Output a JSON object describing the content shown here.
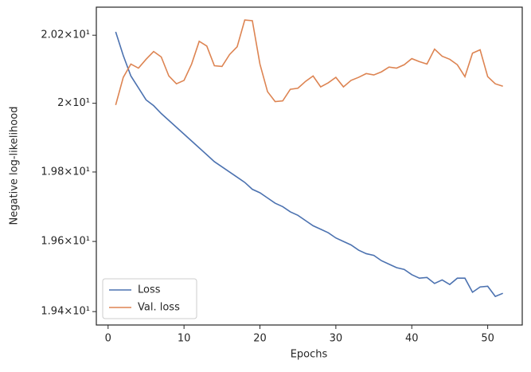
{
  "chart_data": {
    "type": "line",
    "xlabel": "Epochs",
    "ylabel": "Negative log-likelihood",
    "x": [
      1,
      2,
      3,
      4,
      5,
      6,
      7,
      8,
      9,
      10,
      11,
      12,
      13,
      14,
      15,
      16,
      17,
      18,
      19,
      20,
      21,
      22,
      23,
      24,
      25,
      26,
      27,
      28,
      29,
      30,
      31,
      32,
      33,
      34,
      35,
      36,
      37,
      38,
      39,
      40,
      41,
      42,
      43,
      44,
      45,
      46,
      47,
      48,
      49,
      50,
      51,
      52
    ],
    "series": [
      {
        "name": "Loss",
        "color": "#4c72b0",
        "values": [
          20.21,
          20.14,
          20.08,
          20.045,
          20.01,
          19.993,
          19.97,
          19.95,
          19.93,
          19.91,
          19.89,
          19.87,
          19.85,
          19.83,
          19.815,
          19.8,
          19.785,
          19.77,
          19.75,
          19.74,
          19.725,
          19.71,
          19.7,
          19.685,
          19.675,
          19.66,
          19.645,
          19.635,
          19.625,
          19.61,
          19.6,
          19.59,
          19.575,
          19.565,
          19.56,
          19.545,
          19.535,
          19.525,
          19.52,
          19.505,
          19.495,
          19.497,
          19.48,
          19.49,
          19.477,
          19.495,
          19.495,
          19.455,
          19.47,
          19.472,
          19.443,
          19.452
        ]
      },
      {
        "name": "Val. loss",
        "color": "#dd8452",
        "values": [
          19.995,
          20.076,
          20.115,
          20.103,
          20.129,
          20.152,
          20.136,
          20.08,
          20.057,
          20.067,
          20.115,
          20.182,
          20.168,
          20.11,
          20.108,
          20.143,
          20.166,
          20.245,
          20.243,
          20.115,
          20.034,
          20.005,
          20.007,
          20.041,
          20.044,
          20.064,
          20.08,
          20.048,
          20.06,
          20.076,
          20.048,
          20.067,
          20.076,
          20.087,
          20.083,
          20.092,
          20.106,
          20.103,
          20.113,
          20.131,
          20.122,
          20.115,
          20.159,
          20.138,
          20.129,
          20.113,
          20.078,
          20.147,
          20.157,
          20.078,
          20.057,
          20.05
        ]
      }
    ],
    "xlim": [
      -1.55,
      54.55
    ],
    "xticks": [
      0,
      10,
      20,
      30,
      40,
      50
    ],
    "ylim": [
      19.362,
      20.283
    ],
    "log_y": true,
    "yticks": [
      {
        "value": 19.4,
        "label": "1.94×10¹"
      },
      {
        "value": 19.6,
        "label": "1.96×10¹"
      },
      {
        "value": 19.8,
        "label": "1.98×10¹"
      },
      {
        "value": 20,
        "label": "2×10¹"
      },
      {
        "value": 20.2,
        "label": "2.02×10¹"
      }
    ],
    "legend": "lower left"
  }
}
